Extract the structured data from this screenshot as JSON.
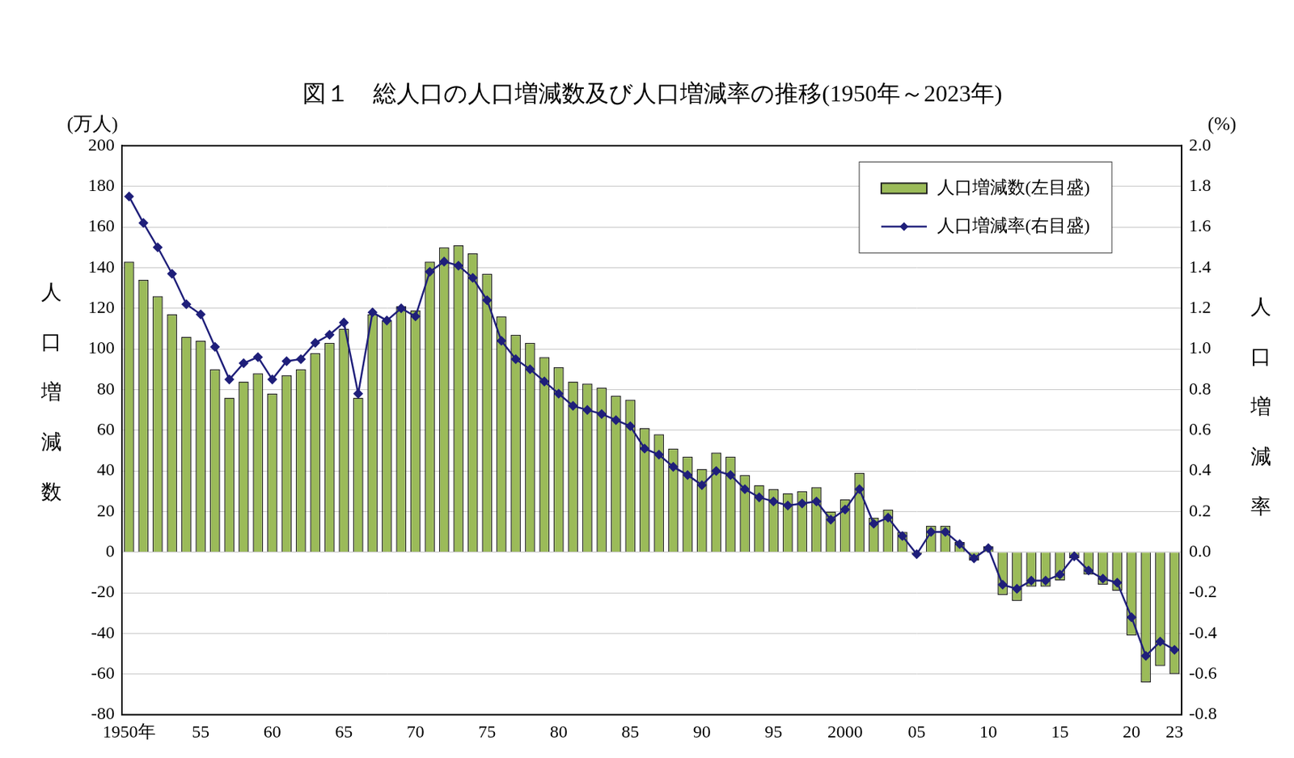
{
  "chart_data": {
    "type": "bar",
    "title": "図１　総人口の人口増減数及び人口増減率の推移(1950年～2023年)",
    "categories": [
      "1950年",
      null,
      null,
      null,
      null,
      "55",
      null,
      null,
      null,
      null,
      "60",
      null,
      null,
      null,
      null,
      "65",
      null,
      null,
      null,
      null,
      "70",
      null,
      null,
      null,
      null,
      "75",
      null,
      null,
      null,
      null,
      "80",
      null,
      null,
      null,
      null,
      "85",
      null,
      null,
      null,
      null,
      "90",
      null,
      null,
      null,
      null,
      "95",
      null,
      null,
      null,
      null,
      "2000",
      null,
      null,
      null,
      null,
      "05",
      null,
      null,
      null,
      null,
      "10",
      null,
      null,
      null,
      null,
      "15",
      null,
      null,
      null,
      null,
      "20",
      null,
      null,
      "23"
    ],
    "series": [
      {
        "name": "人口増減数(左目盛)",
        "type": "bar",
        "color": "#9bbb59",
        "values": [
          143,
          134,
          126,
          117,
          106,
          104,
          90,
          76,
          84,
          88,
          78,
          87,
          90,
          98,
          103,
          110,
          76,
          117,
          114,
          121,
          119,
          143,
          150,
          151,
          147,
          137,
          116,
          107,
          103,
          96,
          91,
          84,
          83,
          81,
          77,
          75,
          61,
          58,
          51,
          47,
          41,
          49,
          47,
          38,
          33,
          31,
          29,
          30,
          32,
          20,
          26,
          39,
          17,
          21,
          10,
          -1,
          13,
          13,
          5,
          -4,
          3,
          -21,
          -24,
          -17,
          -17,
          -14,
          -3,
          -11,
          -16,
          -19,
          -41,
          -64,
          -56,
          -60
        ]
      },
      {
        "name": "人口増減率(右目盛)",
        "type": "line",
        "color": "#1f1f7a",
        "marker": "diamond",
        "axis": "y2",
        "values": [
          1.75,
          1.62,
          1.5,
          1.37,
          1.22,
          1.17,
          1.01,
          0.85,
          0.93,
          0.96,
          0.85,
          0.94,
          0.95,
          1.03,
          1.07,
          1.13,
          0.78,
          1.18,
          1.14,
          1.2,
          1.16,
          1.38,
          1.43,
          1.41,
          1.35,
          1.24,
          1.04,
          0.95,
          0.9,
          0.84,
          0.78,
          0.72,
          0.7,
          0.68,
          0.65,
          0.62,
          0.51,
          0.48,
          0.42,
          0.38,
          0.33,
          0.4,
          0.38,
          0.31,
          0.27,
          0.25,
          0.23,
          0.24,
          0.25,
          0.16,
          0.21,
          0.31,
          0.14,
          0.17,
          0.08,
          -0.01,
          0.1,
          0.1,
          0.04,
          -0.03,
          0.02,
          -0.16,
          -0.18,
          -0.14,
          -0.14,
          -0.11,
          -0.02,
          -0.09,
          -0.13,
          -0.15,
          -0.32,
          -0.51,
          -0.44,
          -0.48
        ]
      }
    ],
    "ylabel": "人口増減数",
    "yunit": "(万人)",
    "y2label": "人口増減率",
    "y2unit": "(%)",
    "ylim": [
      -80,
      200
    ],
    "yticks": [
      -80,
      -60,
      -40,
      -20,
      0,
      20,
      40,
      60,
      80,
      100,
      120,
      140,
      160,
      180,
      200
    ],
    "y2lim": [
      -0.8,
      2.0
    ],
    "y2ticks": [
      {
        "value": -0.8,
        "label": "-0.8"
      },
      {
        "value": -0.6,
        "label": "-0.6"
      },
      {
        "value": -0.4,
        "label": "-0.4"
      },
      {
        "value": -0.2,
        "label": "-0.2"
      },
      {
        "value": 0,
        "label": "0.0"
      },
      {
        "value": 0.2,
        "label": "0.2"
      },
      {
        "value": 0.4,
        "label": "0.4"
      },
      {
        "value": 0.6,
        "label": "0.6"
      },
      {
        "value": 0.8,
        "label": "0.8"
      },
      {
        "value": 1.0,
        "label": "1.0"
      },
      {
        "value": 1.2,
        "label": "1.2"
      },
      {
        "value": 1.4,
        "label": "1.4"
      },
      {
        "value": 1.6,
        "label": "1.6"
      },
      {
        "value": 1.8,
        "label": "1.8"
      },
      {
        "value": 2.0,
        "label": "2.0"
      }
    ],
    "grid": true,
    "legend": "upper right"
  }
}
